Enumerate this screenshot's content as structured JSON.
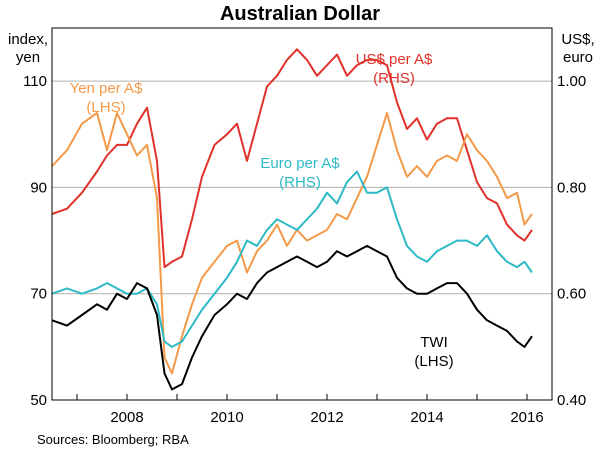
{
  "chart_data": {
    "type": "line",
    "title": "Australian Dollar",
    "left_axis": {
      "label_lines": [
        "index,",
        "yen"
      ],
      "ylim": [
        50,
        120
      ],
      "ticks": [
        50,
        70,
        90,
        110
      ],
      "tick_labels": [
        "50",
        "70",
        "90",
        "110"
      ]
    },
    "right_axis": {
      "label_lines": [
        "US$,",
        "euro"
      ],
      "ylim": [
        0.4,
        1.1
      ],
      "ticks": [
        0.4,
        0.6,
        0.8,
        1.0
      ],
      "tick_labels": [
        "0.40",
        "0.60",
        "0.80",
        "1.00"
      ]
    },
    "x_axis": {
      "xlim": [
        2006.5,
        2016.5
      ],
      "ticks": [
        2008,
        2010,
        2012,
        2014,
        2016
      ],
      "tick_labels": [
        "2008",
        "2010",
        "2012",
        "2014",
        "2016"
      ]
    },
    "grid": "horizontal",
    "series": [
      {
        "name": "Yen per A$",
        "axis_note": "(LHS)",
        "axis": "left",
        "color": "#f39a4a",
        "points": [
          [
            2006.5,
            94
          ],
          [
            2006.8,
            97
          ],
          [
            2007.1,
            102
          ],
          [
            2007.4,
            104
          ],
          [
            2007.6,
            97
          ],
          [
            2007.8,
            104
          ],
          [
            2008.0,
            100
          ],
          [
            2008.2,
            96
          ],
          [
            2008.4,
            98
          ],
          [
            2008.6,
            88
          ],
          [
            2008.75,
            58
          ],
          [
            2008.9,
            55
          ],
          [
            2009.1,
            62
          ],
          [
            2009.3,
            68
          ],
          [
            2009.5,
            73
          ],
          [
            2009.75,
            76
          ],
          [
            2010.0,
            79
          ],
          [
            2010.2,
            80
          ],
          [
            2010.4,
            74
          ],
          [
            2010.6,
            78
          ],
          [
            2010.8,
            80
          ],
          [
            2011.0,
            83
          ],
          [
            2011.2,
            79
          ],
          [
            2011.4,
            82
          ],
          [
            2011.6,
            80
          ],
          [
            2011.8,
            81
          ],
          [
            2012.0,
            82
          ],
          [
            2012.2,
            85
          ],
          [
            2012.4,
            84
          ],
          [
            2012.6,
            88
          ],
          [
            2012.8,
            92
          ],
          [
            2013.0,
            98
          ],
          [
            2013.2,
            104
          ],
          [
            2013.4,
            97
          ],
          [
            2013.6,
            92
          ],
          [
            2013.8,
            94
          ],
          [
            2014.0,
            92
          ],
          [
            2014.2,
            95
          ],
          [
            2014.4,
            96
          ],
          [
            2014.6,
            95
          ],
          [
            2014.8,
            100
          ],
          [
            2015.0,
            97
          ],
          [
            2015.2,
            95
          ],
          [
            2015.4,
            92
          ],
          [
            2015.6,
            88
          ],
          [
            2015.8,
            89
          ],
          [
            2015.95,
            83
          ],
          [
            2016.1,
            85
          ]
        ]
      },
      {
        "name": "US$ per A$",
        "axis_note": "(RHS)",
        "axis": "right",
        "color": "#e0312a",
        "points": [
          [
            2006.5,
            0.75
          ],
          [
            2006.8,
            0.76
          ],
          [
            2007.1,
            0.79
          ],
          [
            2007.4,
            0.83
          ],
          [
            2007.6,
            0.86
          ],
          [
            2007.8,
            0.88
          ],
          [
            2008.0,
            0.88
          ],
          [
            2008.2,
            0.92
          ],
          [
            2008.4,
            0.95
          ],
          [
            2008.6,
            0.85
          ],
          [
            2008.75,
            0.65
          ],
          [
            2008.9,
            0.66
          ],
          [
            2009.1,
            0.67
          ],
          [
            2009.3,
            0.74
          ],
          [
            2009.5,
            0.82
          ],
          [
            2009.75,
            0.88
          ],
          [
            2010.0,
            0.9
          ],
          [
            2010.2,
            0.92
          ],
          [
            2010.4,
            0.85
          ],
          [
            2010.6,
            0.92
          ],
          [
            2010.8,
            0.99
          ],
          [
            2011.0,
            1.01
          ],
          [
            2011.2,
            1.04
          ],
          [
            2011.4,
            1.06
          ],
          [
            2011.6,
            1.04
          ],
          [
            2011.8,
            1.01
          ],
          [
            2012.0,
            1.03
          ],
          [
            2012.2,
            1.05
          ],
          [
            2012.4,
            1.01
          ],
          [
            2012.6,
            1.03
          ],
          [
            2012.8,
            1.04
          ],
          [
            2013.0,
            1.04
          ],
          [
            2013.2,
            1.03
          ],
          [
            2013.4,
            0.96
          ],
          [
            2013.6,
            0.91
          ],
          [
            2013.8,
            0.93
          ],
          [
            2014.0,
            0.89
          ],
          [
            2014.2,
            0.92
          ],
          [
            2014.4,
            0.93
          ],
          [
            2014.6,
            0.93
          ],
          [
            2014.8,
            0.87
          ],
          [
            2015.0,
            0.81
          ],
          [
            2015.2,
            0.78
          ],
          [
            2015.4,
            0.77
          ],
          [
            2015.6,
            0.73
          ],
          [
            2015.8,
            0.71
          ],
          [
            2015.95,
            0.7
          ],
          [
            2016.1,
            0.72
          ]
        ]
      },
      {
        "name": "Euro per A$",
        "axis_note": "(RHS)",
        "axis": "right",
        "color": "#2eb9c7",
        "points": [
          [
            2006.5,
            0.6
          ],
          [
            2006.8,
            0.61
          ],
          [
            2007.1,
            0.6
          ],
          [
            2007.4,
            0.61
          ],
          [
            2007.6,
            0.62
          ],
          [
            2007.8,
            0.61
          ],
          [
            2008.0,
            0.6
          ],
          [
            2008.2,
            0.6
          ],
          [
            2008.4,
            0.61
          ],
          [
            2008.6,
            0.58
          ],
          [
            2008.75,
            0.51
          ],
          [
            2008.9,
            0.5
          ],
          [
            2009.1,
            0.51
          ],
          [
            2009.3,
            0.54
          ],
          [
            2009.5,
            0.57
          ],
          [
            2009.75,
            0.6
          ],
          [
            2010.0,
            0.63
          ],
          [
            2010.2,
            0.66
          ],
          [
            2010.4,
            0.7
          ],
          [
            2010.6,
            0.69
          ],
          [
            2010.8,
            0.72
          ],
          [
            2011.0,
            0.74
          ],
          [
            2011.2,
            0.73
          ],
          [
            2011.4,
            0.72
          ],
          [
            2011.6,
            0.74
          ],
          [
            2011.8,
            0.76
          ],
          [
            2012.0,
            0.79
          ],
          [
            2012.2,
            0.77
          ],
          [
            2012.4,
            0.81
          ],
          [
            2012.6,
            0.83
          ],
          [
            2012.8,
            0.79
          ],
          [
            2013.0,
            0.79
          ],
          [
            2013.2,
            0.8
          ],
          [
            2013.4,
            0.74
          ],
          [
            2013.6,
            0.69
          ],
          [
            2013.8,
            0.67
          ],
          [
            2014.0,
            0.66
          ],
          [
            2014.2,
            0.68
          ],
          [
            2014.4,
            0.69
          ],
          [
            2014.6,
            0.7
          ],
          [
            2014.8,
            0.7
          ],
          [
            2015.0,
            0.69
          ],
          [
            2015.2,
            0.71
          ],
          [
            2015.4,
            0.68
          ],
          [
            2015.6,
            0.66
          ],
          [
            2015.8,
            0.65
          ],
          [
            2015.95,
            0.66
          ],
          [
            2016.1,
            0.64
          ]
        ]
      },
      {
        "name": "TWI",
        "axis_note": "(LHS)",
        "axis": "left",
        "color": "#000000",
        "points": [
          [
            2006.5,
            65
          ],
          [
            2006.8,
            64
          ],
          [
            2007.1,
            66
          ],
          [
            2007.4,
            68
          ],
          [
            2007.6,
            67
          ],
          [
            2007.8,
            70
          ],
          [
            2008.0,
            69
          ],
          [
            2008.2,
            72
          ],
          [
            2008.4,
            71
          ],
          [
            2008.6,
            66
          ],
          [
            2008.75,
            55
          ],
          [
            2008.9,
            52
          ],
          [
            2009.1,
            53
          ],
          [
            2009.3,
            58
          ],
          [
            2009.5,
            62
          ],
          [
            2009.75,
            66
          ],
          [
            2010.0,
            68
          ],
          [
            2010.2,
            70
          ],
          [
            2010.4,
            69
          ],
          [
            2010.6,
            72
          ],
          [
            2010.8,
            74
          ],
          [
            2011.0,
            75
          ],
          [
            2011.2,
            76
          ],
          [
            2011.4,
            77
          ],
          [
            2011.6,
            76
          ],
          [
            2011.8,
            75
          ],
          [
            2012.0,
            76
          ],
          [
            2012.2,
            78
          ],
          [
            2012.4,
            77
          ],
          [
            2012.6,
            78
          ],
          [
            2012.8,
            79
          ],
          [
            2013.0,
            78
          ],
          [
            2013.2,
            77
          ],
          [
            2013.4,
            73
          ],
          [
            2013.6,
            71
          ],
          [
            2013.8,
            70
          ],
          [
            2014.0,
            70
          ],
          [
            2014.2,
            71
          ],
          [
            2014.4,
            72
          ],
          [
            2014.6,
            72
          ],
          [
            2014.8,
            70
          ],
          [
            2015.0,
            67
          ],
          [
            2015.2,
            65
          ],
          [
            2015.4,
            64
          ],
          [
            2015.6,
            63
          ],
          [
            2015.8,
            61
          ],
          [
            2015.95,
            60
          ],
          [
            2016.1,
            62
          ]
        ]
      }
    ],
    "annotations": [
      {
        "text": "Yen per A$",
        "series": 0
      },
      {
        "text": "(LHS)",
        "series": 0
      },
      {
        "text": "US$ per A$",
        "series": 1
      },
      {
        "text": "(RHS)",
        "series": 1
      },
      {
        "text": "Euro per A$",
        "series": 2
      },
      {
        "text": "(RHS)",
        "series": 2
      },
      {
        "text": "TWI",
        "series": 3
      },
      {
        "text": "(LHS)",
        "series": 3
      }
    ]
  },
  "source": "Sources:   Bloomberg; RBA"
}
